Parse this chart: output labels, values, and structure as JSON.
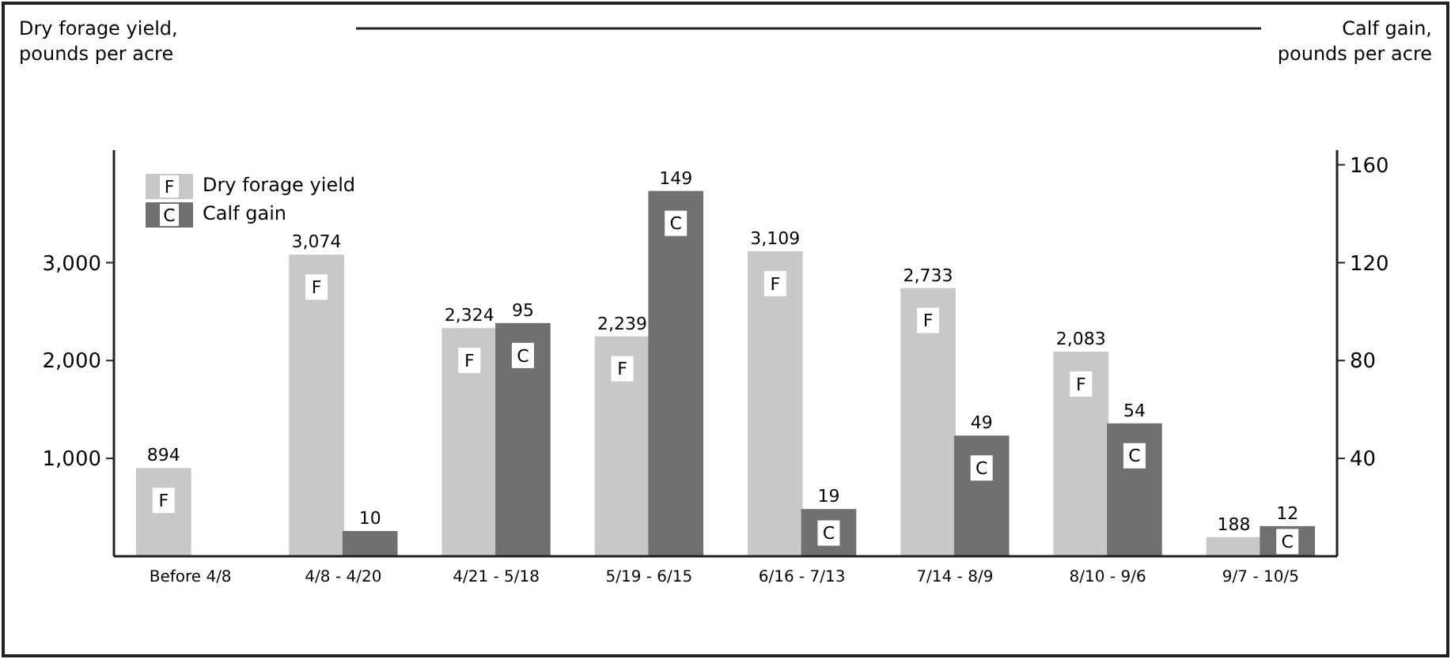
{
  "chart_data": {
    "type": "bar",
    "ylabel": "Dry forage yield, pounds per acre",
    "y2label": "Calf gain, pounds per acre",
    "categories": [
      "Before 4/8",
      "4/8 - 4/20",
      "4/21 - 5/18",
      "5/19 - 6/15",
      "6/16 - 7/13",
      "7/14 - 8/9",
      "8/10 - 9/6",
      "9/7 - 10/5"
    ],
    "series": [
      {
        "name": "Dry forage yield",
        "color": "#c8c8c8",
        "values": [
          894,
          3074,
          2324,
          2239,
          3109,
          2733,
          2083,
          188
        ],
        "value_labels": [
          "894",
          "3,074",
          "2,324",
          "2,239",
          "3,109",
          "2,733",
          "2,083",
          "188"
        ]
      },
      {
        "name": "Calf gain",
        "color": "#707070",
        "axis": "y2",
        "values": [
          null,
          10,
          95,
          149,
          19,
          49,
          54,
          12
        ],
        "value_labels": [
          null,
          "10",
          "95",
          "149",
          "19",
          "49",
          "54",
          "12"
        ]
      }
    ],
    "annotations": [
      "F",
      "C"
    ],
    "ylim": [
      0,
      4150
    ],
    "yticks": [
      {
        "value": 1000,
        "label": "1,000"
      },
      {
        "value": 2000,
        "label": "2,000"
      },
      {
        "value": 3000,
        "label": "3,000"
      }
    ],
    "y2lim": [
      0,
      166
    ],
    "y2ticks": [
      40,
      80,
      120,
      160
    ],
    "legend": "top left",
    "grid": false
  }
}
